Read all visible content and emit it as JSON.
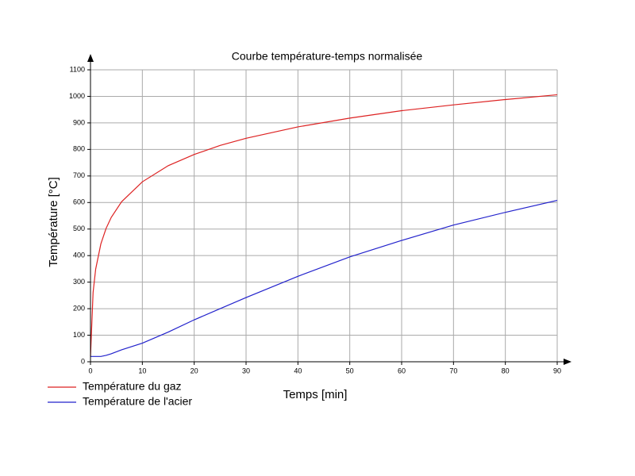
{
  "chart_data": {
    "type": "line",
    "title": "Courbe température-temps normalisée",
    "x_label": "Temps [min]",
    "y_label": "Température  [°C]",
    "x": [
      0,
      0.5,
      1,
      2,
      3,
      4,
      6,
      10,
      15,
      20,
      25,
      30,
      40,
      50,
      60,
      70,
      80,
      90
    ],
    "series": [
      {
        "name": "Température du gaz",
        "color": "#dd2222",
        "values": [
          20,
          261,
          349,
          444,
          502,
          544,
          603,
          678,
          739,
          781,
          815,
          842,
          885,
          918,
          946,
          968,
          988,
          1006
        ]
      },
      {
        "name": "Température de l'acier",
        "color": "#2222cc",
        "values": [
          20,
          20,
          20,
          20,
          24,
          30,
          45,
          70,
          112,
          158,
          200,
          242,
          322,
          395,
          457,
          515,
          563,
          608
        ]
      }
    ],
    "xlim": [
      0,
      90
    ],
    "xticks": [
      0,
      10,
      20,
      30,
      40,
      50,
      60,
      70,
      80,
      90
    ],
    "ylim": [
      0,
      1100
    ],
    "yticks": [
      0,
      100,
      200,
      300,
      400,
      500,
      600,
      700,
      800,
      900,
      1000,
      1100
    ],
    "grid": true
  }
}
